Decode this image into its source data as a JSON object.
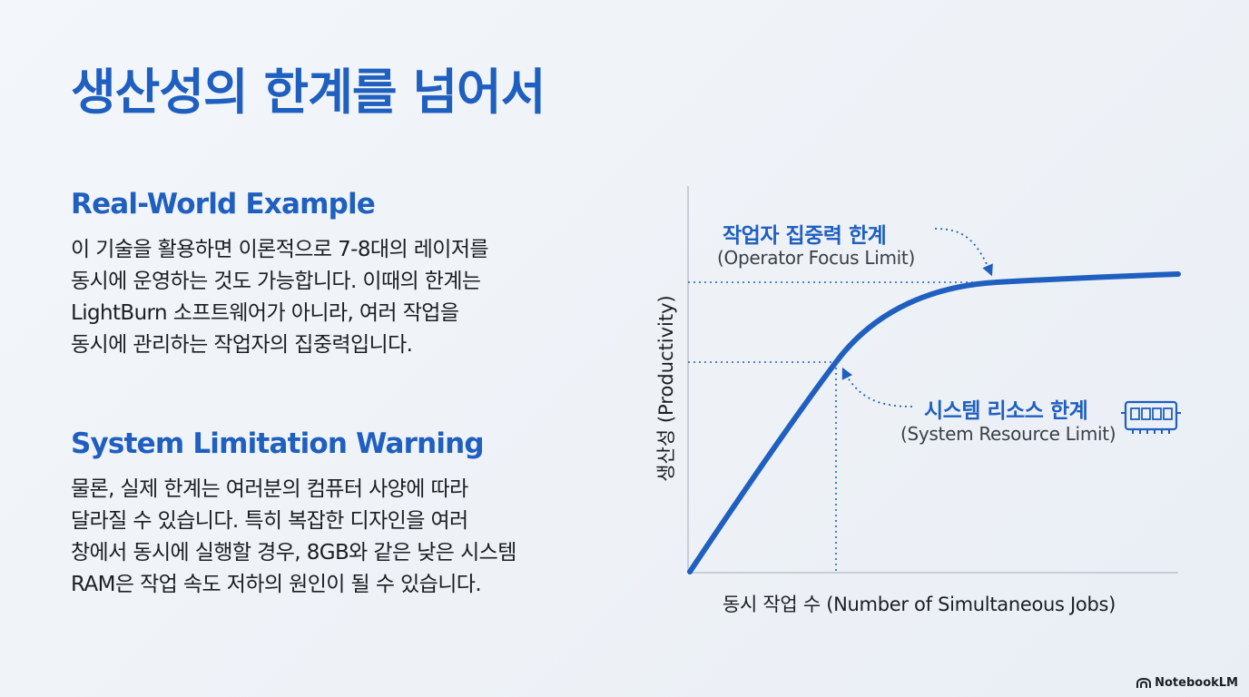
{
  "title": "생산성의 한계를 넘어서",
  "sections": [
    {
      "heading": "Real-World Example",
      "lines": [
        "이 기술을 활용하면 이론적으로 7-8대의 레이저를",
        "동시에 운영하는 것도 가능합니다. 이때의 한계는",
        "LightBurn 소프트웨어가 아니라, 여러 작업을",
        "동시에 관리하는 작업자의 집중력입니다."
      ]
    },
    {
      "heading": "System Limitation Warning",
      "lines": [
        "물론, 실제 한계는 여러분의 컴퓨터 사양에 따라",
        "달라질 수 있습니다. 특히 복잡한 디자인을 여러",
        "창에서 동시에 실행할 경우, 8GB와 같은 낮은 시스템",
        "RAM은 작업 속도 저하의 원인이 될 수 있습니다."
      ]
    }
  ],
  "diagram": {
    "ylabel": "생산성 (Productivity)",
    "xlabel": "동시 작업 수 (Number of Simultaneous Jobs)",
    "operator_limit": {
      "title": "작업자 집중력 한계",
      "subtitle": "(Operator Focus Limit)"
    },
    "system_limit": {
      "title": "시스템 리소스 한계",
      "subtitle": "(System Resource Limit)",
      "icon": "memory-chip-icon"
    },
    "curve_color": "#1f5fbf",
    "axis_color": "#c9ced6",
    "guide_color": "#1f5fbf"
  },
  "branding": {
    "label": "NotebookLM",
    "icon": "notebooklm-logo-icon"
  }
}
